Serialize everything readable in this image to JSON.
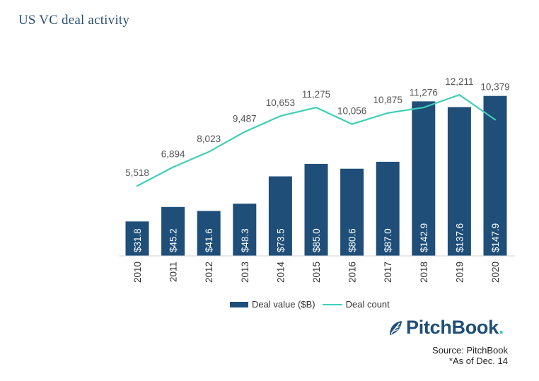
{
  "page": {
    "title": "US VC deal activity",
    "source": "Source: PitchBook",
    "note": "*As of Dec. 14",
    "logo_text": "PitchBook",
    "logo_dot": "."
  },
  "legend": {
    "bar_label": "Deal value ($B)",
    "line_label": "Deal count"
  },
  "colors": {
    "bar": "#1f4e79",
    "line": "#3fcfb6"
  },
  "chart_data": {
    "type": "bar",
    "title": "US VC deal activity",
    "xlabel": "",
    "ylabel": "",
    "categories": [
      "2010",
      "2011",
      "2012",
      "2013",
      "2014",
      "2015",
      "2016",
      "2017",
      "2018",
      "2019",
      "2020"
    ],
    "series": [
      {
        "name": "Deal value ($B)",
        "type": "bar",
        "values": [
          31.8,
          45.2,
          41.6,
          48.3,
          73.5,
          85.0,
          80.6,
          87.0,
          142.9,
          137.6,
          147.9
        ],
        "labels": [
          "$31.8",
          "$45.2",
          "$41.6",
          "$48.3",
          "$73.5",
          "$85.0",
          "$80.6",
          "$87.0",
          "$142.9",
          "$137.6",
          "$147.9"
        ]
      },
      {
        "name": "Deal count",
        "type": "line",
        "values": [
          5518,
          6894,
          8023,
          9487,
          10653,
          11275,
          10056,
          10875,
          11276,
          12211,
          10379
        ],
        "labels": [
          "5,518",
          "6,894",
          "8,023",
          "9,487",
          "10,653",
          "11,275",
          "10,056",
          "10,875",
          "11,276",
          "12,211",
          "10,379"
        ]
      }
    ],
    "legend_position": "bottom",
    "grid": false
  }
}
